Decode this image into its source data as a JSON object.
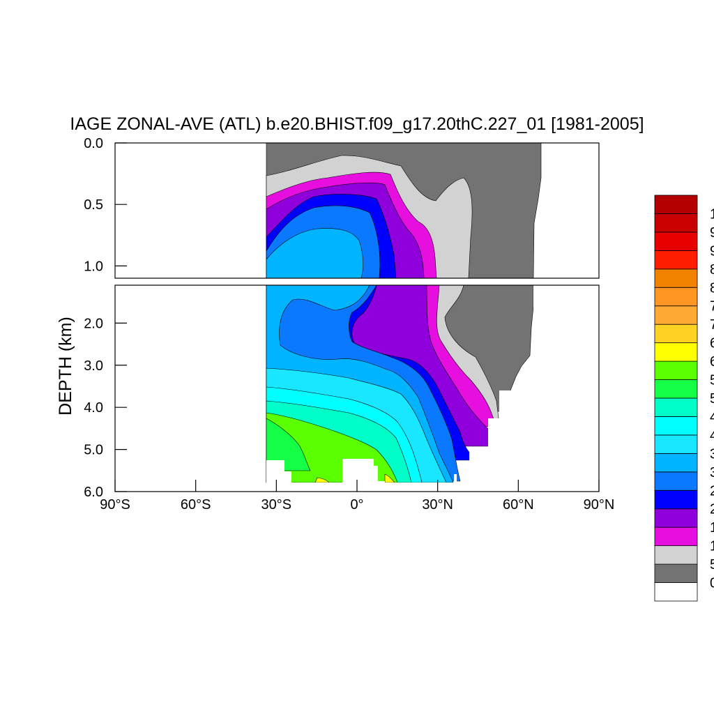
{
  "chart_data": {
    "type": "heatmap",
    "title": "IAGE ZONAL-AVE (ATL) b.e20.BHIST.f09_g17.20thC.227_01 [1981-2005]",
    "ylabel": "DEPTH (km)",
    "xlim": [
      -90,
      90
    ],
    "ylim": [
      0,
      6
    ],
    "x_ticks": [
      {
        "value": -90,
        "label": "90°S"
      },
      {
        "value": -60,
        "label": "60°S"
      },
      {
        "value": -30,
        "label": "30°S"
      },
      {
        "value": 0,
        "label": "0°"
      },
      {
        "value": 30,
        "label": "30°N"
      },
      {
        "value": 60,
        "label": "60°N"
      },
      {
        "value": 90,
        "label": "90°N"
      }
    ],
    "y_ticks_upper": [
      {
        "value": 0.0,
        "label": "0.0"
      },
      {
        "value": 0.5,
        "label": "0.5"
      },
      {
        "value": 1.0,
        "label": "1.0"
      }
    ],
    "y_ticks_lower": [
      {
        "value": 2.0,
        "label": "2.0"
      },
      {
        "value": 3.0,
        "label": "3.0"
      },
      {
        "value": 4.0,
        "label": "4.0"
      },
      {
        "value": 5.0,
        "label": "5.0"
      },
      {
        "value": 6.0,
        "label": "6.0"
      }
    ],
    "colorbar": [
      {
        "color": "#ffffff",
        "label": "0"
      },
      {
        "color": "#737373",
        "label": "5"
      },
      {
        "color": "#d2d2d2",
        "label": "1"
      },
      {
        "color": "#e60fe0",
        "label": "1"
      },
      {
        "color": "#9000dc",
        "label": "2"
      },
      {
        "color": "#0000ff",
        "label": "2"
      },
      {
        "color": "#0a78ff",
        "label": "3"
      },
      {
        "color": "#00b4ff",
        "label": "3"
      },
      {
        "color": "#19e6ff",
        "label": "4"
      },
      {
        "color": "#00ffff",
        "label": "4"
      },
      {
        "color": "#00ffc8",
        "label": "5"
      },
      {
        "color": "#14ff46",
        "label": "5"
      },
      {
        "color": "#5aff00",
        "label": "6"
      },
      {
        "color": "#ffff00",
        "label": "6"
      },
      {
        "color": "#ffd223",
        "label": "7"
      },
      {
        "color": "#ffaa32",
        "label": "7"
      },
      {
        "color": "#ff9623",
        "label": "8"
      },
      {
        "color": "#f08200",
        "label": "8"
      },
      {
        "color": "#ff1e00",
        "label": "9"
      },
      {
        "color": "#e60000",
        "label": "9"
      },
      {
        "color": "#c80000",
        "label": "1"
      },
      {
        "color": "#b40000",
        "label": ""
      }
    ]
  }
}
